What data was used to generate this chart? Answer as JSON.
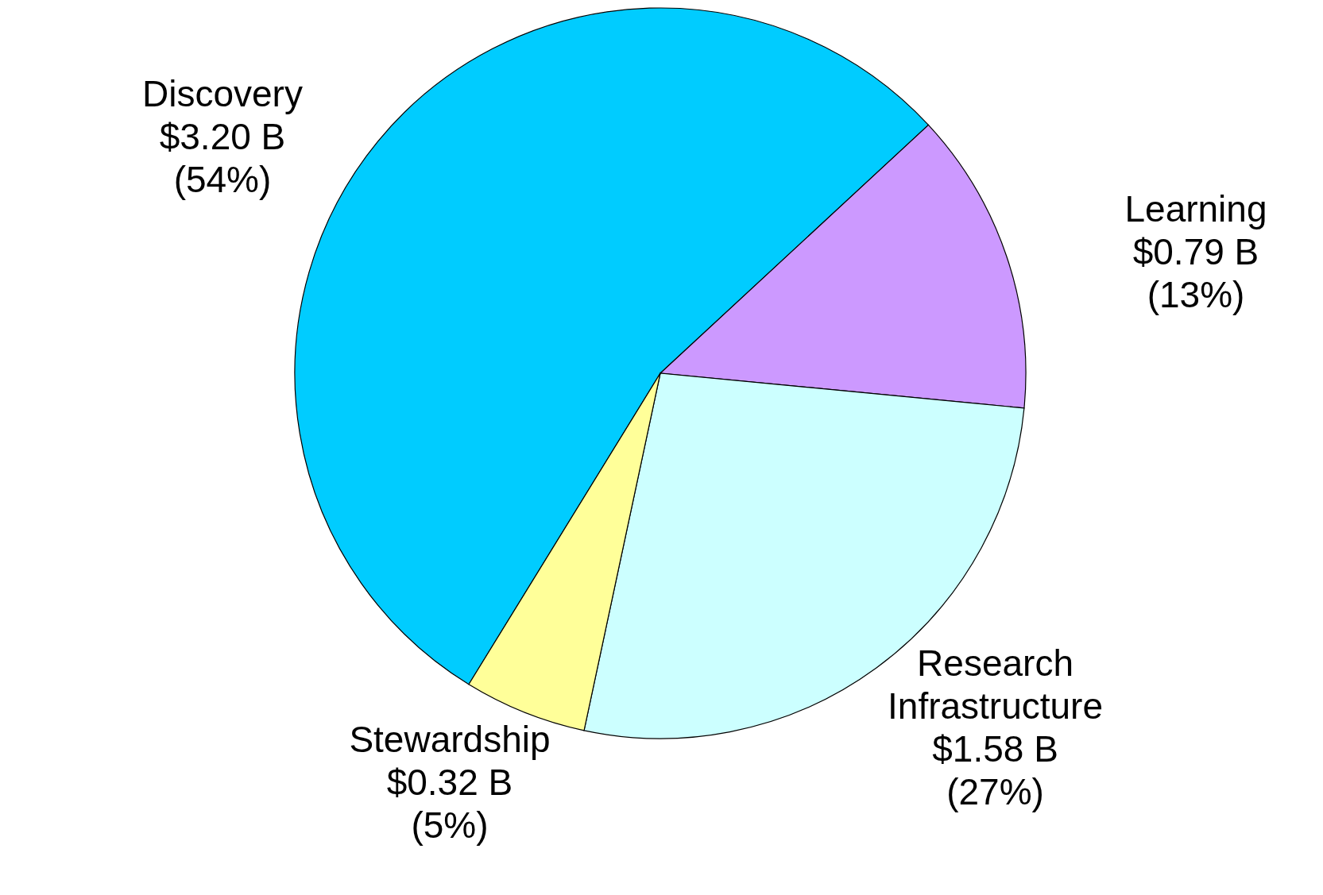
{
  "chart_data": {
    "type": "pie",
    "categories": [
      "Discovery",
      "Learning",
      "Research\nInfrastructure",
      "Stewardship"
    ],
    "values": [
      3.2,
      0.79,
      1.58,
      0.32
    ],
    "value_labels": [
      "$3.20 B\n(54%)",
      "$0.79 B\n(13%)",
      "$1.58 B\n(27%)",
      "$0.32 B\n(5%)"
    ],
    "colors": [
      "#00ccff",
      "#cc99ff",
      "#ccffff",
      "#ffff99"
    ]
  }
}
